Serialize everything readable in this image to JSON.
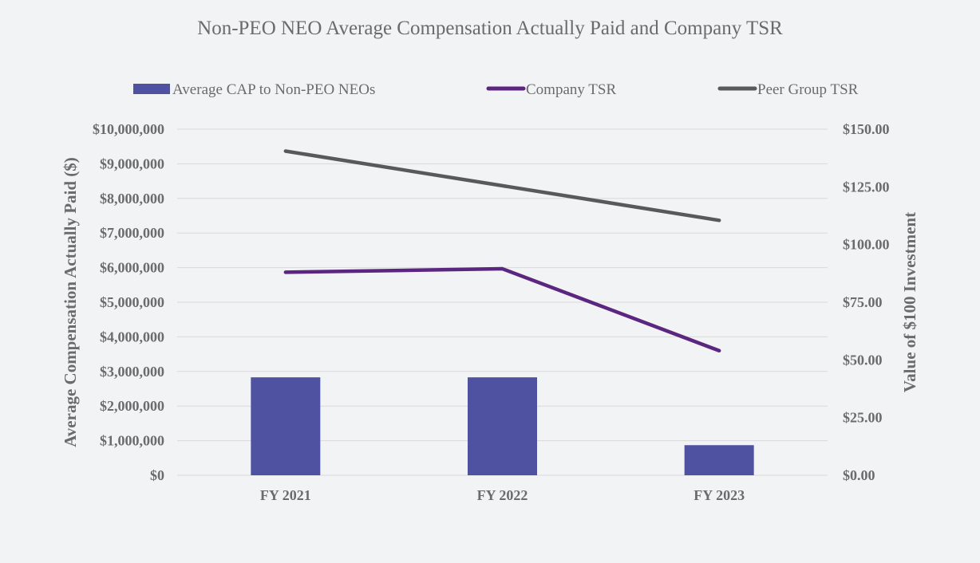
{
  "chart_data": {
    "type": "bar+line",
    "title": "Non-PEO NEO Average Compensation Actually Paid and Company TSR",
    "categories": [
      "FY 2021",
      "FY 2022",
      "FY 2023"
    ],
    "bars": {
      "name": "Average CAP to Non-PEO NEOs",
      "axis": "left",
      "color": "#4f52a0",
      "values": [
        2830000,
        2830000,
        870000
      ]
    },
    "lines": [
      {
        "name": "Company TSR",
        "axis": "right",
        "color": "#5b2680",
        "values": [
          88.0,
          89.5,
          54.0
        ]
      },
      {
        "name": "Peer Group TSR",
        "axis": "right",
        "color": "#595959",
        "values": [
          140.5,
          125.5,
          110.5
        ]
      }
    ],
    "left_axis": {
      "label": "Average Compensation Actually Paid ($)",
      "ylim": [
        0,
        10000000
      ],
      "ticks": [
        "$0",
        "$1,000,000",
        "$2,000,000",
        "$3,000,000",
        "$4,000,000",
        "$5,000,000",
        "$6,000,000",
        "$7,000,000",
        "$8,000,000",
        "$9,000,000",
        "$10,000,000"
      ]
    },
    "right_axis": {
      "label": "Value of $100 Investment",
      "ylim": [
        0,
        150
      ],
      "ticks": [
        "$0.00",
        "$25.00",
        "$50.00",
        "$75.00",
        "$100.00",
        "$125.00",
        "$150.00"
      ]
    },
    "legend": [
      "Average CAP to Non-PEO NEOs",
      "Company TSR",
      "Peer Group TSR"
    ],
    "legend_position": "top",
    "grid": true
  }
}
